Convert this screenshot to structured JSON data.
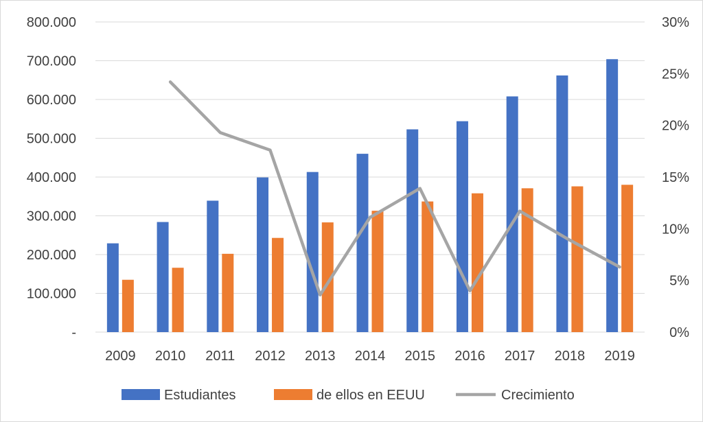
{
  "chart_data": {
    "type": "bar",
    "title": "",
    "xlabel": "",
    "ylabel": "",
    "categories": [
      "2009",
      "2010",
      "2011",
      "2012",
      "2013",
      "2014",
      "2015",
      "2016",
      "2017",
      "2018",
      "2019"
    ],
    "series": [
      {
        "name": "Estudiantes",
        "type": "bar",
        "axis": "left",
        "color": "#4472C4",
        "values": [
          229000,
          284000,
          339000,
          399000,
          413000,
          460000,
          523000,
          544000,
          608000,
          662000,
          704000
        ]
      },
      {
        "name": "de ellos en EEUU",
        "type": "bar",
        "axis": "left",
        "color": "#ED7D31",
        "values": [
          135000,
          166000,
          202000,
          243000,
          283000,
          313000,
          337000,
          358000,
          371000,
          376000,
          380000
        ]
      },
      {
        "name": "Crecimiento",
        "type": "line",
        "axis": "right",
        "color": "#A5A5A5",
        "values": [
          null,
          0.242,
          0.193,
          0.176,
          0.036,
          0.111,
          0.139,
          0.04,
          0.117,
          0.089,
          0.063
        ]
      }
    ],
    "ylim": [
      0,
      800000
    ],
    "y2lim": [
      0,
      0.3
    ],
    "yticks": [
      "-",
      "100.000",
      "200.000",
      "300.000",
      "400.000",
      "500.000",
      "600.000",
      "700.000",
      "800.000"
    ],
    "y2ticks": [
      "0%",
      "5%",
      "10%",
      "15%",
      "20%",
      "25%",
      "30%"
    ],
    "grid": true,
    "legend_position": "bottom"
  }
}
